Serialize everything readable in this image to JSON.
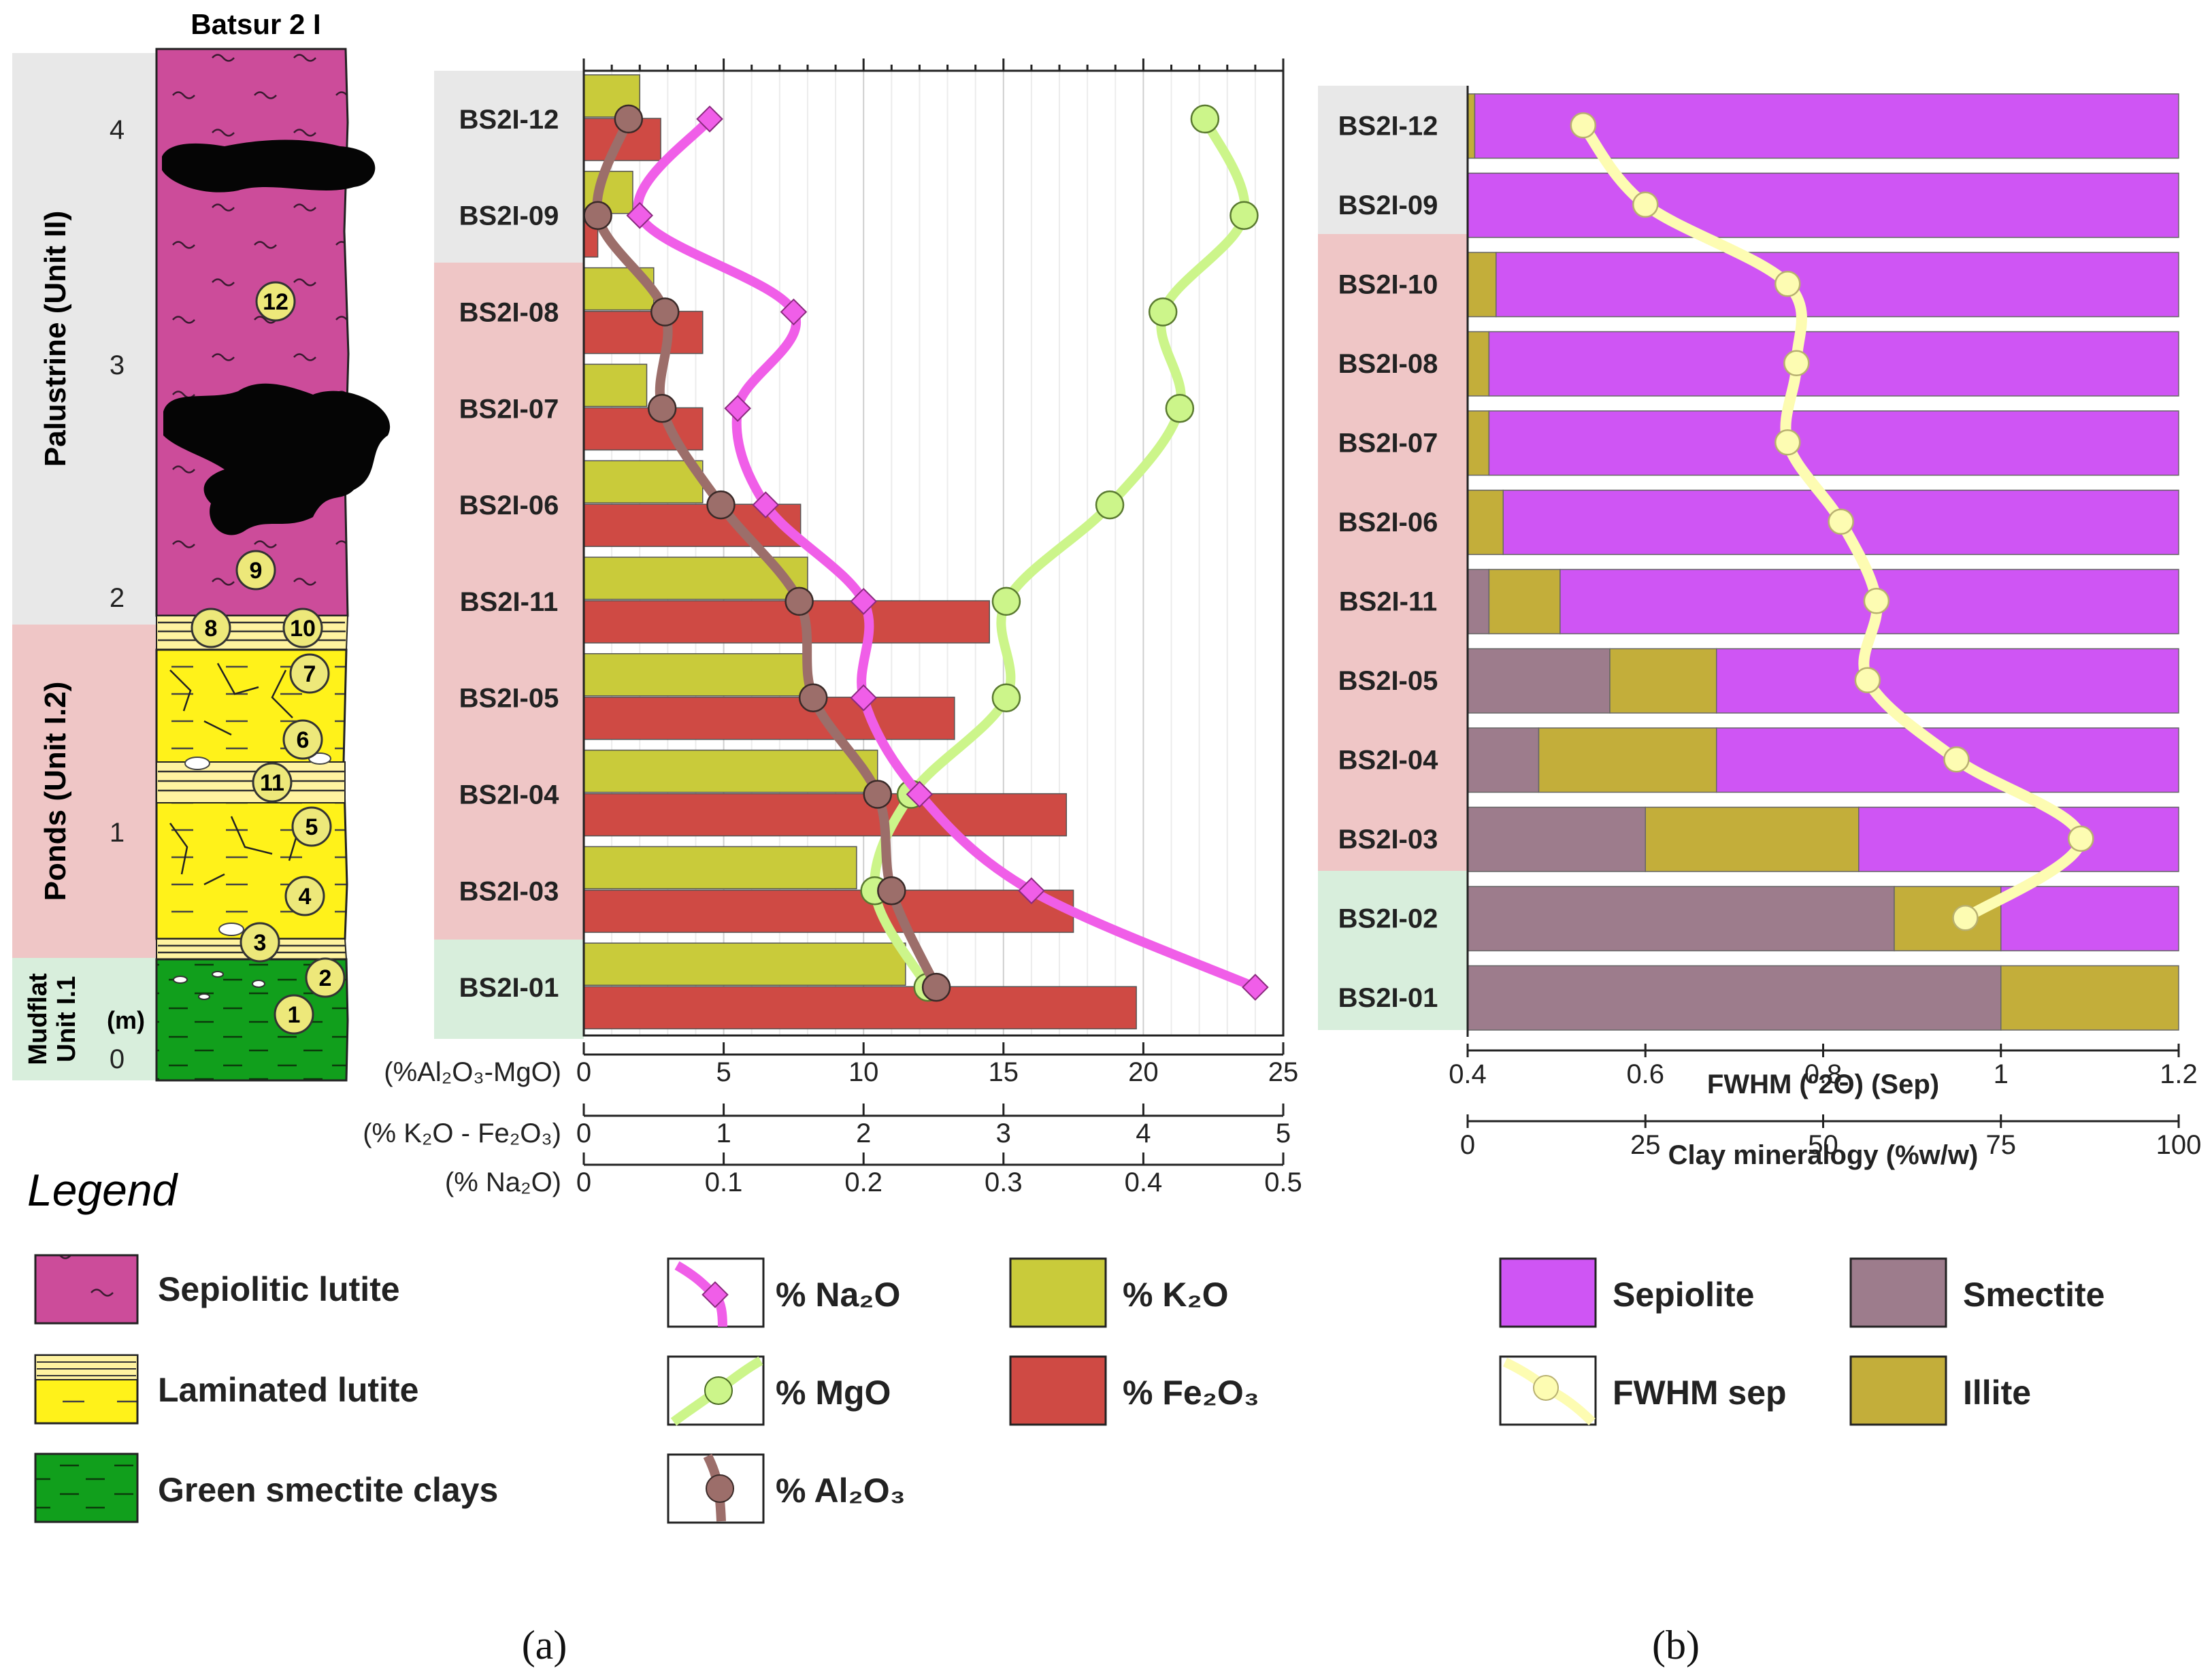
{
  "colors": {
    "sepiolitic": "#cc4c9a",
    "laminated": "#fff21a",
    "green_clay": "#119f1c",
    "unit2_band": "#e8e8e8",
    "unit12_band": "#efc6c6",
    "unit11_band": "#d8eedc",
    "k2o": "#c9cb3a",
    "fe2o3": "#cf4a44",
    "na2o": "#f05ee8",
    "mgo": "#ccf58a",
    "al2o3": "#9c6e6a",
    "sepiolite": "#cf55f4",
    "smectite": "#9d7c8c",
    "illite": "#c3ae3a",
    "fwhm": "#fdfcb2"
  },
  "column": {
    "title": "Batsur 2 I",
    "y_ticks": [
      "4",
      "3",
      "2",
      "1",
      "0"
    ],
    "unit_labels": [
      "Palustrine (Unit II)",
      "Ponds (Unit I.2)",
      "Mudflat",
      "Unit I.1"
    ],
    "m_label": "(m)",
    "sample_markers": [
      "12",
      "9",
      "8",
      "10",
      "7",
      "6",
      "11",
      "5",
      "4",
      "3",
      "2",
      "1"
    ]
  },
  "chart_data": [
    {
      "type": "bar",
      "title": "(a)",
      "orientation": "horizontal",
      "categories": [
        "BS2I-12",
        "BS2I-09",
        "BS2I-08",
        "BS2I-07",
        "BS2I-06",
        "BS2I-11",
        "BS2I-05",
        "BS2I-04",
        "BS2I-03",
        "BS2I-01"
      ],
      "axes": [
        {
          "label": "(%Al₂O₃-MgO)",
          "range": [
            0,
            25
          ],
          "ticks": [
            "0",
            "5",
            "10",
            "15",
            "20",
            "25"
          ]
        },
        {
          "label": "(% K₂O - Fe₂O₃)",
          "range": [
            0,
            5
          ],
          "ticks": [
            "0",
            "1",
            "2",
            "3",
            "4",
            "5"
          ]
        },
        {
          "label": "(% Na₂O)",
          "range": [
            0,
            0.5
          ],
          "ticks": [
            "0",
            "0.1",
            "0.2",
            "0.3",
            "0.4",
            "0.5"
          ]
        }
      ],
      "series": [
        {
          "name": "% K₂O",
          "kind": "bar",
          "axis": 1,
          "values": [
            0.4,
            0.35,
            0.5,
            0.45,
            0.85,
            1.6,
            1.6,
            2.1,
            1.95,
            2.3
          ]
        },
        {
          "name": "% Fe₂O₃",
          "kind": "bar",
          "axis": 1,
          "values": [
            0.55,
            0.1,
            0.85,
            0.85,
            1.55,
            2.9,
            2.65,
            3.45,
            3.5,
            3.95
          ]
        },
        {
          "name": "% Na₂O",
          "kind": "line",
          "axis": 2,
          "values": [
            0.09,
            0.04,
            0.15,
            0.11,
            0.13,
            0.2,
            0.2,
            0.24,
            0.32,
            0.48
          ]
        },
        {
          "name": "% MgO",
          "kind": "line",
          "axis": 0,
          "values": [
            22.2,
            23.6,
            20.7,
            21.3,
            18.8,
            15.1,
            15.1,
            11.7,
            10.4,
            12.3
          ]
        },
        {
          "name": "% Al₂O₃",
          "kind": "line",
          "axis": 0,
          "values": [
            1.6,
            0.5,
            2.9,
            2.8,
            4.9,
            7.7,
            8.2,
            10.5,
            11.0,
            12.6
          ]
        }
      ]
    },
    {
      "type": "bar",
      "title": "(b)",
      "orientation": "horizontal",
      "stacked": true,
      "categories": [
        "BS2I-12",
        "BS2I-09",
        "BS2I-10",
        "BS2I-08",
        "BS2I-07",
        "BS2I-06",
        "BS2I-11",
        "BS2I-05",
        "BS2I-04",
        "BS2I-03",
        "BS2I-02",
        "BS2I-01"
      ],
      "axes": [
        {
          "label": "FWHM (º2Θ) (Sep)",
          "range": [
            0.4,
            1.2
          ],
          "ticks": [
            "0.4",
            "0.6",
            "0.8",
            "1",
            "1.2"
          ]
        },
        {
          "label": "Clay mineralogy (%w/w)",
          "range": [
            0,
            100
          ],
          "ticks": [
            "0",
            "25",
            "50",
            "75",
            "100"
          ]
        }
      ],
      "series": [
        {
          "name": "Smectite",
          "kind": "bar",
          "axis": 1,
          "values": [
            0,
            0,
            0,
            0,
            0,
            0,
            3,
            20,
            10,
            25,
            60,
            75
          ]
        },
        {
          "name": "Illite",
          "kind": "bar",
          "axis": 1,
          "values": [
            1,
            0,
            4,
            3,
            3,
            5,
            10,
            15,
            25,
            30,
            15,
            25
          ]
        },
        {
          "name": "Sepiolite",
          "kind": "bar",
          "axis": 1,
          "values": [
            99,
            100,
            96,
            97,
            97,
            95,
            87,
            65,
            65,
            45,
            25,
            0
          ]
        },
        {
          "name": "FWHM sep",
          "kind": "line",
          "axis": 0,
          "values": [
            0.53,
            0.6,
            0.76,
            0.77,
            0.76,
            0.82,
            0.86,
            0.85,
            0.95,
            1.09,
            0.96,
            null
          ]
        }
      ]
    }
  ],
  "legend": {
    "title": "Legend",
    "lithology": [
      "Sepiolitic lutite",
      "Laminated lutite",
      "Green smectite clays"
    ],
    "chem": [
      "% Na₂O",
      "% K₂O",
      "% MgO",
      "% Fe₂O₃",
      "% Al₂O₃"
    ],
    "clay": [
      "Sepiolite",
      "Smectite",
      "FWHM sep",
      "Illite"
    ]
  },
  "captions": {
    "a": "(a)",
    "b": "(b)"
  }
}
